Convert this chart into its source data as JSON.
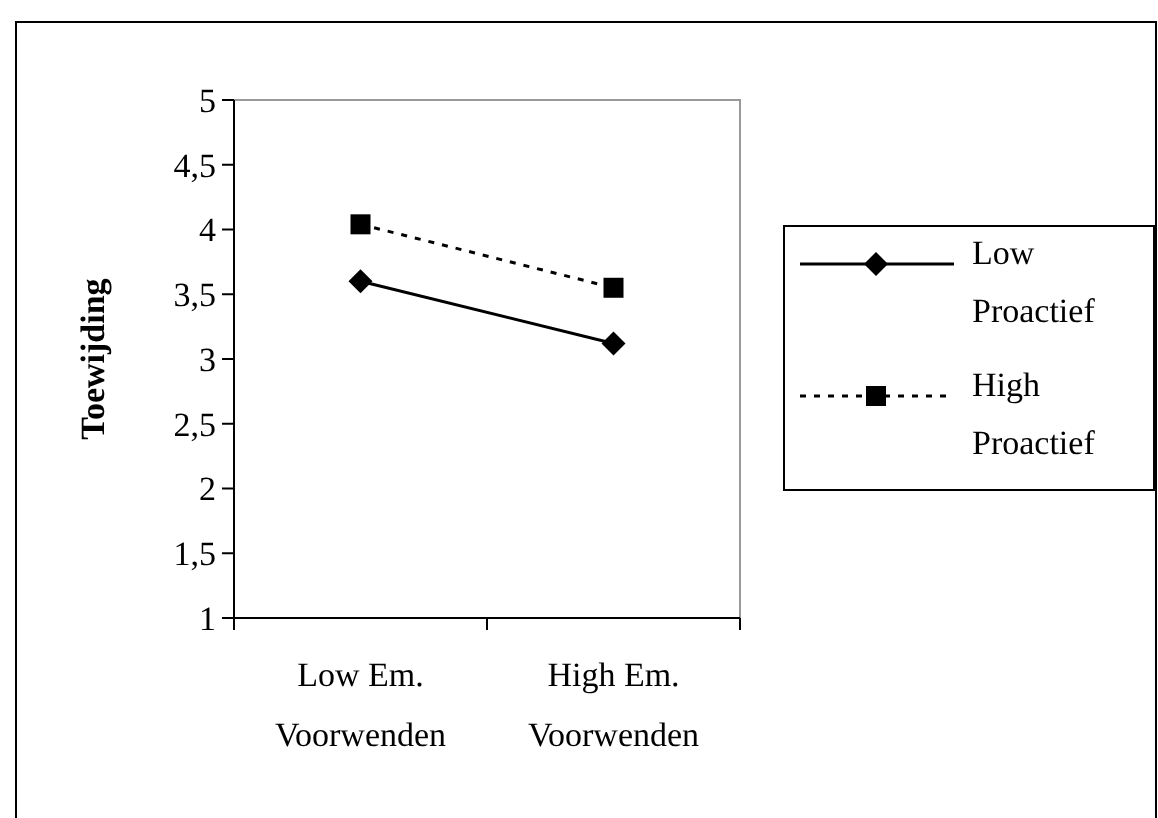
{
  "chart_data": {
    "type": "line",
    "ylabel": "Toewijding",
    "categories": [
      "Low Em. Voorwenden",
      "High Em. Voorwenden"
    ],
    "series": [
      {
        "name": "Low Proactief",
        "color": "#000000",
        "values": [
          3.6,
          3.12
        ],
        "marker": "diamond",
        "line_style": "solid"
      },
      {
        "name": "High Proactief",
        "color": "#000000",
        "values": [
          4.04,
          3.55
        ],
        "marker": "square",
        "line_style": "dotted"
      }
    ],
    "ylim": [
      1,
      5
    ],
    "yticks": [
      1,
      {
        "value": 1.5,
        "label": "1,5"
      },
      2,
      {
        "value": 2.5,
        "label": "2,5"
      },
      3,
      {
        "value": 3.5,
        "label": "3,5"
      },
      4,
      {
        "value": 4.5,
        "label": "4,5"
      },
      5
    ],
    "grid": false,
    "legend": "right"
  }
}
